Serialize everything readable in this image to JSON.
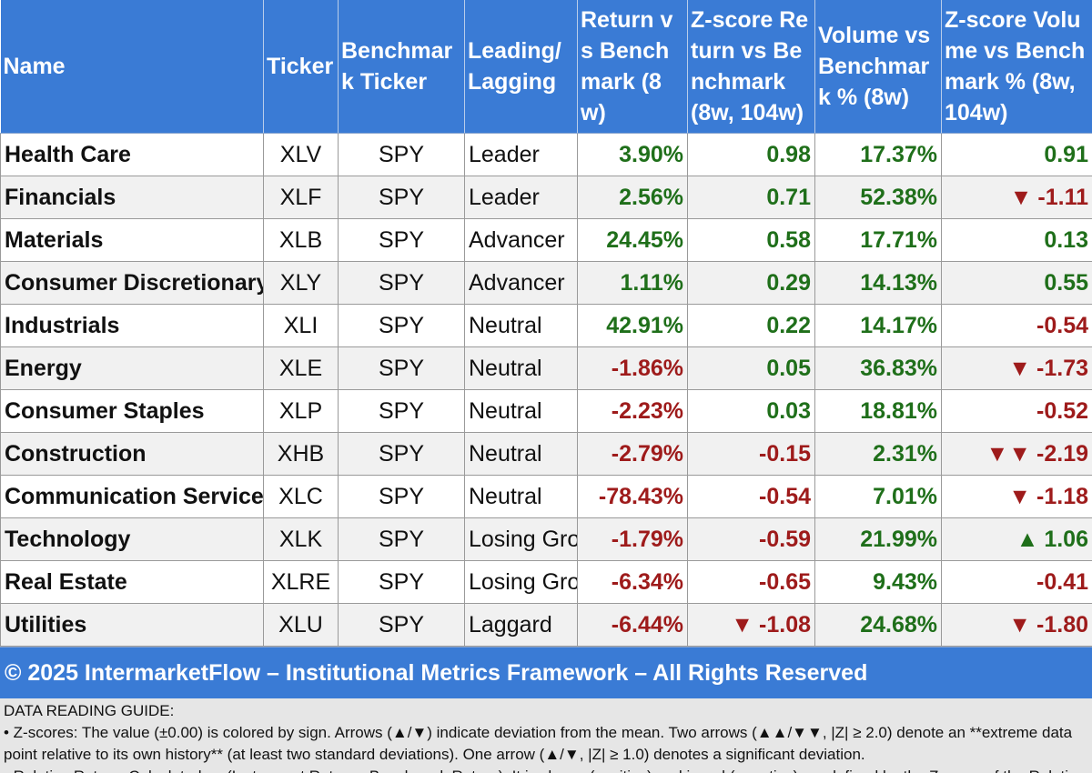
{
  "headers": [
    "Name",
    "Ticker",
    "Benchmark Ticker",
    "Leading/Lagging",
    "Return vs Benchmark (8w)",
    "Z-score Return vs Benchmark (8w, 104w)",
    "Volume vs Benchmark % (8w)",
    "Z-score Volume vs Benchmark % (8w, 104w)"
  ],
  "rows": [
    {
      "name": "Health Care",
      "ticker": "XLV",
      "bench": "SPY",
      "status": "Leader",
      "ret": "3.90%",
      "ret_sign": "pos",
      "zret": "0.98",
      "zret_sign": "pos",
      "zret_arrow": "",
      "vol": "17.37%",
      "vol_sign": "pos",
      "zvol": "0.91",
      "zvol_sign": "pos",
      "zvol_arrow": ""
    },
    {
      "name": "Financials",
      "ticker": "XLF",
      "bench": "SPY",
      "status": "Leader",
      "ret": "2.56%",
      "ret_sign": "pos",
      "zret": "0.71",
      "zret_sign": "pos",
      "zret_arrow": "",
      "vol": "52.38%",
      "vol_sign": "pos",
      "zvol": "-1.11",
      "zvol_sign": "neg",
      "zvol_arrow": "▼"
    },
    {
      "name": "Materials",
      "ticker": "XLB",
      "bench": "SPY",
      "status": "Advancer",
      "ret": "24.45%",
      "ret_sign": "pos",
      "zret": "0.58",
      "zret_sign": "pos",
      "zret_arrow": "",
      "vol": "17.71%",
      "vol_sign": "pos",
      "zvol": "0.13",
      "zvol_sign": "pos",
      "zvol_arrow": ""
    },
    {
      "name": "Consumer Discretionary",
      "ticker": "XLY",
      "bench": "SPY",
      "status": "Advancer",
      "ret": "1.11%",
      "ret_sign": "pos",
      "zret": "0.29",
      "zret_sign": "pos",
      "zret_arrow": "",
      "vol": "14.13%",
      "vol_sign": "pos",
      "zvol": "0.55",
      "zvol_sign": "pos",
      "zvol_arrow": ""
    },
    {
      "name": "Industrials",
      "ticker": "XLI",
      "bench": "SPY",
      "status": "Neutral",
      "ret": "42.91%",
      "ret_sign": "pos",
      "zret": "0.22",
      "zret_sign": "pos",
      "zret_arrow": "",
      "vol": "14.17%",
      "vol_sign": "pos",
      "zvol": "-0.54",
      "zvol_sign": "neg",
      "zvol_arrow": ""
    },
    {
      "name": "Energy",
      "ticker": "XLE",
      "bench": "SPY",
      "status": "Neutral",
      "ret": "-1.86%",
      "ret_sign": "neg",
      "zret": "0.05",
      "zret_sign": "pos",
      "zret_arrow": "",
      "vol": "36.83%",
      "vol_sign": "pos",
      "zvol": "-1.73",
      "zvol_sign": "neg",
      "zvol_arrow": "▼"
    },
    {
      "name": "Consumer Staples",
      "ticker": "XLP",
      "bench": "SPY",
      "status": "Neutral",
      "ret": "-2.23%",
      "ret_sign": "neg",
      "zret": "0.03",
      "zret_sign": "pos",
      "zret_arrow": "",
      "vol": "18.81%",
      "vol_sign": "pos",
      "zvol": "-0.52",
      "zvol_sign": "neg",
      "zvol_arrow": ""
    },
    {
      "name": "Construction",
      "ticker": "XHB",
      "bench": "SPY",
      "status": "Neutral",
      "ret": "-2.79%",
      "ret_sign": "neg",
      "zret": "-0.15",
      "zret_sign": "neg",
      "zret_arrow": "",
      "vol": "2.31%",
      "vol_sign": "pos",
      "zvol": "-2.19",
      "zvol_sign": "neg",
      "zvol_arrow": "▼▼"
    },
    {
      "name": "Communication Services",
      "ticker": "XLC",
      "bench": "SPY",
      "status": "Neutral",
      "ret": "-78.43%",
      "ret_sign": "neg",
      "zret": "-0.54",
      "zret_sign": "neg",
      "zret_arrow": "",
      "vol": "7.01%",
      "vol_sign": "pos",
      "zvol": "-1.18",
      "zvol_sign": "neg",
      "zvol_arrow": "▼"
    },
    {
      "name": "Technology",
      "ticker": "XLK",
      "bench": "SPY",
      "status": "Losing Group",
      "ret": "-1.79%",
      "ret_sign": "neg",
      "zret": "-0.59",
      "zret_sign": "neg",
      "zret_arrow": "",
      "vol": "21.99%",
      "vol_sign": "pos",
      "zvol": "1.06",
      "zvol_sign": "pos",
      "zvol_arrow": "▲"
    },
    {
      "name": "Real Estate",
      "ticker": "XLRE",
      "bench": "SPY",
      "status": "Losing Group",
      "ret": "-6.34%",
      "ret_sign": "neg",
      "zret": "-0.65",
      "zret_sign": "neg",
      "zret_arrow": "",
      "vol": "9.43%",
      "vol_sign": "pos",
      "zvol": "-0.41",
      "zvol_sign": "neg",
      "zvol_arrow": ""
    },
    {
      "name": "Utilities",
      "ticker": "XLU",
      "bench": "SPY",
      "status": "Laggard",
      "ret": "-6.44%",
      "ret_sign": "neg",
      "zret": "-1.08",
      "zret_sign": "neg",
      "zret_arrow": "▼",
      "vol": "24.68%",
      "vol_sign": "pos",
      "zvol": "-1.80",
      "zvol_sign": "neg",
      "zvol_arrow": "▼"
    }
  ],
  "footer": "© 2025 IntermarketFlow – Institutional Metrics Framework – All Rights Reserved",
  "guide": {
    "title": "DATA READING GUIDE:",
    "zscore": " • Z-scores: The value (±0.00) is colored by sign. Arrows (▲/▼) indicate deviation from the mean. Two arrows (▲▲/▼▼, |Z| ≥ 2.0) denote an **extreme data point relative to its own history** (at least two standard deviations). One arrow (▲/▼, |Z| ≥ 1.0) denotes a significant deviation.",
    "relative": " • Relative Return: Calculated as (Instrument Return - Benchmark Return). It is shown (positive) and in red (negative), as defined by the Z-score of the Relative"
  },
  "colors": {
    "header": "#3a7bd5",
    "positive": "#1f6f1a",
    "negative": "#9e1b1b"
  }
}
